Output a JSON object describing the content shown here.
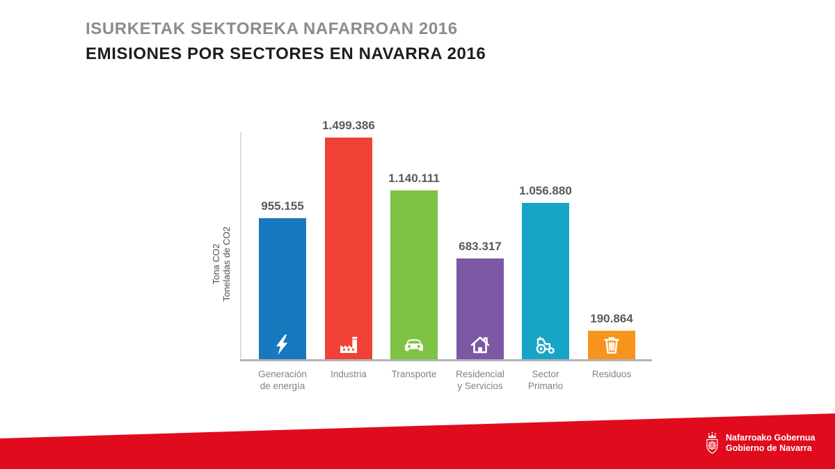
{
  "page": {
    "title_line1": "ISURKETAK SEKTOREKA NAFARROAN 2016",
    "title_line2": "EMISIONES POR SECTORES EN NAVARRA 2016"
  },
  "chart_data": {
    "type": "bar",
    "title": "ISURKETAK SEKTOREKA NAFARROAN 2016 / EMISIONES POR SECTORES EN NAVARRA 2016",
    "xlabel": "",
    "ylabel": "Tona CO2 / Toneladas de CO2",
    "ylabel_lines": [
      "Tona CO2",
      "Toneladas de CO2"
    ],
    "grid": false,
    "legend": false,
    "ylim": [
      0,
      1550000
    ],
    "categories": [
      "Generación de energía",
      "Industria",
      "Transporte",
      "Residencial y Servicios",
      "Sector Primario",
      "Residuos"
    ],
    "values": [
      955155,
      1499386,
      1140111,
      683317,
      1056880,
      190864
    ],
    "bars": [
      {
        "category_lines": [
          "Generación",
          "de energía"
        ],
        "value": 955155,
        "value_label": "955.155",
        "color": "#1878BE",
        "icon": "lightning-icon"
      },
      {
        "category_lines": [
          "Industria"
        ],
        "value": 1499386,
        "value_label": "1.499.386",
        "color": "#EF4136",
        "icon": "factory-icon"
      },
      {
        "category_lines": [
          "Transporte"
        ],
        "value": 1140111,
        "value_label": "1.140.111",
        "color": "#7DC242",
        "icon": "car-icon"
      },
      {
        "category_lines": [
          "Residencial",
          "y Servicios"
        ],
        "value": 683317,
        "value_label": "683.317",
        "color": "#7C57A4",
        "icon": "house-icon"
      },
      {
        "category_lines": [
          "Sector",
          "Primario"
        ],
        "value": 1056880,
        "value_label": "1.056.880",
        "color": "#18A4C6",
        "icon": "tractor-icon"
      },
      {
        "category_lines": [
          "Residuos"
        ],
        "value": 190864,
        "value_label": "190.864",
        "color": "#F7941E",
        "icon": "trash-icon"
      }
    ]
  },
  "footer": {
    "band_color": "#E00C1E",
    "logo_icon": "navarra-coat-of-arms-icon",
    "org_line1": "Nafarroako Gobernua",
    "org_line2": "Gobierno de Navarra"
  },
  "colors": {
    "title_gray": "#8A8C8E",
    "title_black": "#1D1D1B",
    "value_label_gray": "#58595B",
    "category_label_gray": "#808285",
    "axis_line_gray": "#DCDDDE",
    "baseline_gray": "#B1B3B6"
  }
}
